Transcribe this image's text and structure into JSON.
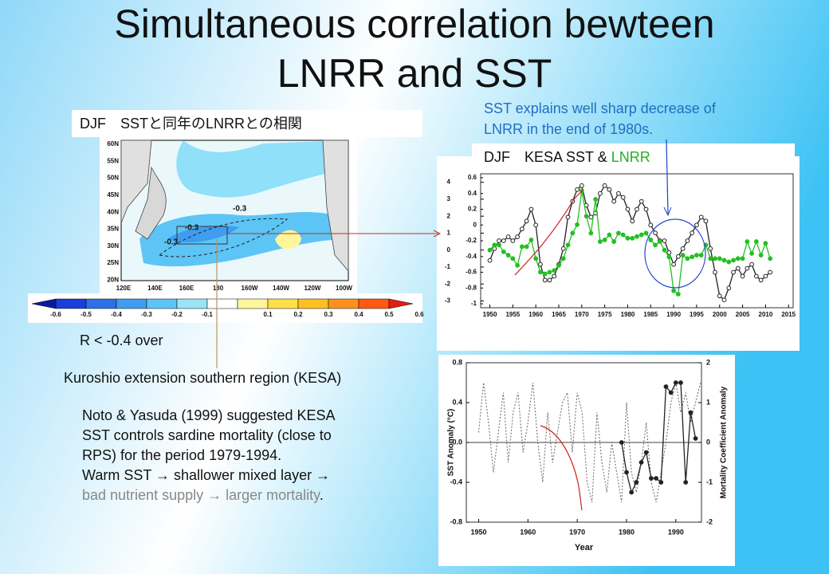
{
  "header": {
    "title_lines": [
      "Simultaneous correlation bewteen",
      "LNRR and SST"
    ]
  },
  "map_box": {
    "title": "DJF　SSTと同年のLNRRとの相関"
  },
  "callout": {
    "lines": [
      "SST explains well sharp decrease of",
      "LNRR in the end of 1980s."
    ]
  },
  "top_box": {
    "title_parts": [
      "DJF　KESA SST & ",
      "LNRR"
    ]
  },
  "labels": {
    "threshold": "R < -0.4 over",
    "region": "Kuroshio extension southern region (KESA)"
  },
  "notes": {
    "lines": [
      "Noto & Yasuda (1999) suggested KESA",
      "SST controls sardine mortality (close to",
      "RPS) for the period 1979-1994.",
      "Warm SST → shallower mixed layer →"
    ],
    "last_line": [
      "bad nutrient supply  → larger mortality",
      "."
    ]
  },
  "map": {
    "lat_labels": [
      "60N",
      "55N",
      "50N",
      "45N",
      "40N",
      "35N",
      "30N",
      "25N",
      "20N"
    ],
    "lon_labels": [
      "120E",
      "140E",
      "160E",
      "180",
      "160W",
      "140W",
      "120W",
      "100W"
    ],
    "contour_labels": [
      "-0.3",
      "-0.3",
      "-0.3"
    ]
  },
  "colorbar": {
    "ticks": [
      -0.6,
      -0.5,
      -0.4,
      -0.3,
      -0.2,
      -0.1,
      0.1,
      0.2,
      0.3,
      0.4,
      0.5,
      0.6
    ],
    "colors": [
      "#1a3fd8",
      "#2f6fe8",
      "#3f9cf0",
      "#5cc5f5",
      "#9be4f8",
      "#ffffff",
      "#fff59a",
      "#ffe04a",
      "#ffc020",
      "#ff9020",
      "#ff5a10"
    ],
    "end_colors": [
      "#0a1aa0",
      "#e02010"
    ]
  },
  "chart_data": [
    {
      "type": "line",
      "x": [
        1950,
        1951,
        1952,
        1953,
        1954,
        1955,
        1956,
        1957,
        1958,
        1959,
        1960,
        1961,
        1962,
        1963,
        1964,
        1965,
        1966,
        1967,
        1968,
        1969,
        1970,
        1971,
        1972,
        1973,
        1974,
        1975,
        1976,
        1977,
        1978,
        1979,
        1980,
        1981,
        1982,
        1983,
        1984,
        1985,
        1986,
        1987,
        1988,
        1989,
        1990,
        1991,
        1992,
        1993,
        1994,
        1995,
        1996,
        1997,
        1998,
        1999,
        2000,
        2001,
        2002,
        2003,
        2004,
        2005,
        2006,
        2007,
        2008,
        2009,
        2010,
        2011
      ],
      "xlim": [
        1948,
        2016
      ],
      "xticks": [
        1950,
        1955,
        1960,
        1965,
        1970,
        1975,
        1980,
        1985,
        1990,
        1995,
        2000,
        2005,
        2010,
        2015
      ],
      "ylim": [
        -3.4,
        4.5
      ],
      "yticks": [
        4,
        3,
        2,
        1,
        0,
        -1,
        -2,
        -3
      ],
      "y2lim": [
        -1.05,
        0.65
      ],
      "y2ticks": [
        0.6,
        0.4,
        0.2,
        0,
        -0.2,
        -0.4,
        -0.6,
        -0.8,
        -1
      ],
      "series": [
        {
          "name": "SST",
          "color": "#222222",
          "axis": "y2",
          "marker": "open",
          "values": [
            -0.45,
            -0.3,
            -0.2,
            -0.2,
            -0.15,
            -0.2,
            -0.15,
            -0.05,
            0.05,
            0.2,
            0.0,
            -0.5,
            -0.7,
            -0.7,
            -0.65,
            -0.5,
            -0.3,
            0.1,
            0.3,
            0.45,
            0.5,
            0.25,
            0.1,
            0.15,
            0.4,
            0.5,
            0.45,
            0.3,
            0.4,
            0.35,
            0.2,
            0.05,
            0.2,
            0.3,
            0.2,
            0.0,
            -0.1,
            -0.2,
            -0.2,
            -0.35,
            -0.5,
            -0.4,
            -0.3,
            -0.2,
            -0.1,
            0.0,
            0.1,
            0.05,
            -0.3,
            -0.6,
            -0.9,
            -0.95,
            -0.8,
            -0.6,
            -0.55,
            -0.65,
            -0.55,
            -0.5,
            -0.65,
            -0.7,
            -0.65,
            -0.6
          ]
        },
        {
          "name": "LNRR",
          "color": "#22c022",
          "axis": "y",
          "marker": "filled",
          "values": [
            0,
            0.3,
            0.3,
            -0.1,
            -0.3,
            -0.5,
            -0.9,
            0.2,
            0.2,
            0.6,
            -0.5,
            -1.3,
            -1.4,
            -1.3,
            -1.2,
            -0.9,
            -0.5,
            0.3,
            1.0,
            1.5,
            3.5,
            2.0,
            1.0,
            3.0,
            0.5,
            0.6,
            0.9,
            0.5,
            1.0,
            0.9,
            0.7,
            0.7,
            0.8,
            0.9,
            1.0,
            0.6,
            0.3,
            0.5,
            0.0,
            -0.4,
            -2.4,
            -2.6,
            -0.3,
            -0.5,
            -0.4,
            -0.3,
            -0.3,
            0.3,
            -0.5,
            -0.5,
            -0.5,
            -0.6,
            -0.7,
            -0.6,
            -0.5,
            -0.5,
            0.5,
            -0.2,
            0.5,
            -0.3,
            0.4,
            -0.5
          ]
        }
      ]
    },
    {
      "type": "line",
      "x_label": "Year",
      "y_label": "SST Anomaly (°C)",
      "y2_label": "Mortality Coefficient Anomaly",
      "xlim": [
        1947.5,
        1995.2
      ],
      "xticks": [
        1950,
        1960,
        1970,
        1980,
        1990
      ],
      "ylim": [
        -0.8,
        0.8
      ],
      "yticks": [
        0.8,
        0.4,
        {
          "value": 0,
          "label": "0.0"
        },
        -0.4,
        -0.8
      ],
      "y2lim": [
        -2,
        2
      ],
      "y2ticks": [
        2,
        1,
        0,
        -1,
        -2
      ],
      "series": [
        {
          "name": "SST",
          "color": "#666666",
          "axis": "y",
          "dash": true,
          "x": [
            1950,
            1951,
            1952,
            1953,
            1954,
            1955,
            1956,
            1957,
            1958,
            1959,
            1960,
            1961,
            1962,
            1963,
            1964,
            1965,
            1966,
            1967,
            1968,
            1969,
            1970,
            1971,
            1972,
            1973,
            1974,
            1975,
            1976,
            1977,
            1978,
            1979,
            1980,
            1981,
            1982,
            1983,
            1984,
            1985,
            1986,
            1987,
            1988,
            1989,
            1990,
            1991,
            1992,
            1993,
            1994,
            1995
          ],
          "values": [
            0.1,
            0.6,
            0.2,
            -0.3,
            0.1,
            0.5,
            -0.2,
            0.3,
            0.5,
            -0.1,
            0.2,
            0.6,
            0.0,
            -0.4,
            0.3,
            -0.2,
            0.1,
            0.4,
            0.5,
            -0.1,
            0.5,
            0.3,
            -0.4,
            -0.6,
            0.3,
            -0.2,
            -0.5,
            0.0,
            -0.3,
            -0.6,
            0.4,
            -0.3,
            -0.5,
            -0.2,
            0.2,
            -0.4,
            -0.6,
            -0.3,
            0.0,
            0.4,
            0.6,
            0.3,
            0.5,
            0.2,
            0.4,
            0.6
          ]
        },
        {
          "name": "Mortality",
          "color": "#222222",
          "axis": "y2",
          "marker": "filled",
          "x": [
            1979,
            1980,
            1981,
            1982,
            1983,
            1984,
            1985,
            1986,
            1987,
            1988,
            1989,
            1990,
            1991,
            1992,
            1993,
            1994
          ],
          "values": [
            0,
            -0.75,
            -1.25,
            -1,
            -0.5,
            -0.25,
            -0.9,
            -0.9,
            -1,
            1.4,
            1.25,
            1.5,
            1.5,
            -1,
            0.75,
            0.1
          ]
        }
      ]
    }
  ]
}
